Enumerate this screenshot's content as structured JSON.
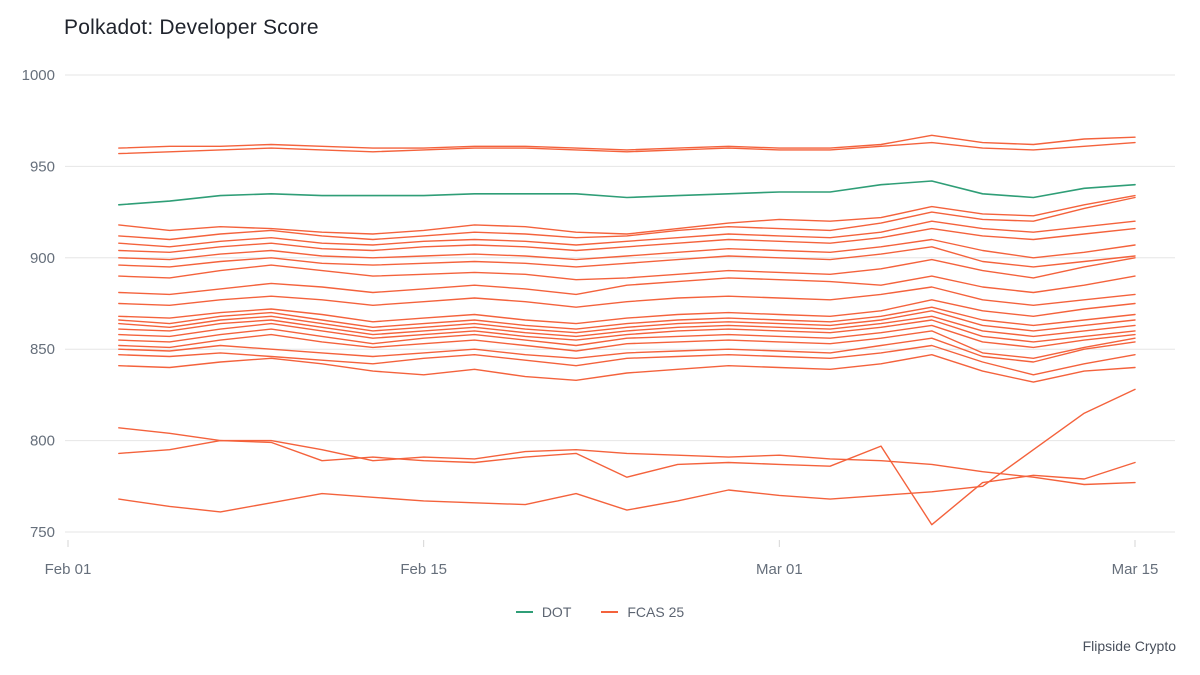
{
  "title": "Polkadot: Developer Score",
  "attribution": "Flipside Crypto",
  "legend": [
    {
      "label": "DOT",
      "color": "#2f9e77"
    },
    {
      "label": "FCAS 25",
      "color": "#f4623c"
    }
  ],
  "colors": {
    "dot_line": "#2f9e77",
    "fcas_line": "#f4623c",
    "gridline": "#e6e6e6",
    "axis_text": "#666f7b",
    "tick_mark": "#d6d6d6"
  },
  "chart_data": {
    "type": "line",
    "title": "Polkadot: Developer Score",
    "xlabel": "",
    "ylabel": "",
    "grid": "horizontal",
    "legend_position": "bottom-center",
    "xlim": [
      0,
      42
    ],
    "ylim": [
      750,
      1000
    ],
    "y_ticks": [
      750,
      800,
      850,
      900,
      950,
      1000
    ],
    "x_ticks": [
      {
        "pos": 0,
        "label": "Feb 01"
      },
      {
        "pos": 14,
        "label": "Feb 15"
      },
      {
        "pos": 28,
        "label": "Mar 01"
      },
      {
        "pos": 42,
        "label": "Mar 15"
      }
    ],
    "x_unit": "days since Feb 01",
    "x": [
      2,
      4,
      6,
      8,
      10,
      12,
      14,
      16,
      18,
      20,
      22,
      24,
      26,
      28,
      30,
      32,
      34,
      36,
      38,
      40,
      42
    ],
    "series": [
      {
        "name": "FCAS 25",
        "color": "#f4623c",
        "values": [
          960,
          961,
          961,
          962,
          961,
          960,
          960,
          961,
          961,
          960,
          959,
          960,
          961,
          960,
          960,
          962,
          967,
          963,
          962,
          965,
          966
        ]
      },
      {
        "name": "FCAS 25",
        "color": "#f4623c",
        "values": [
          957,
          958,
          959,
          960,
          959,
          958,
          959,
          960,
          960,
          959,
          958,
          959,
          960,
          959,
          959,
          961,
          963,
          960,
          959,
          961,
          963
        ]
      },
      {
        "name": "FCAS 25",
        "color": "#f4623c",
        "values": [
          918,
          915,
          917,
          916,
          914,
          913,
          915,
          918,
          917,
          914,
          913,
          916,
          919,
          921,
          920,
          922,
          928,
          924,
          923,
          929,
          934
        ]
      },
      {
        "name": "FCAS 25",
        "color": "#f4623c",
        "values": [
          912,
          910,
          913,
          915,
          912,
          910,
          912,
          914,
          913,
          911,
          912,
          915,
          917,
          916,
          915,
          919,
          925,
          921,
          920,
          927,
          933
        ]
      },
      {
        "name": "FCAS 25",
        "color": "#f4623c",
        "values": [
          908,
          906,
          909,
          911,
          908,
          907,
          909,
          910,
          909,
          907,
          909,
          911,
          913,
          912,
          911,
          914,
          920,
          916,
          914,
          917,
          920
        ]
      },
      {
        "name": "FCAS 25",
        "color": "#f4623c",
        "values": [
          904,
          903,
          906,
          908,
          905,
          904,
          906,
          907,
          906,
          904,
          906,
          908,
          910,
          909,
          908,
          911,
          916,
          912,
          910,
          913,
          916
        ]
      },
      {
        "name": "FCAS 25",
        "color": "#f4623c",
        "values": [
          900,
          899,
          902,
          904,
          901,
          900,
          901,
          902,
          901,
          899,
          901,
          903,
          905,
          904,
          903,
          906,
          910,
          904,
          900,
          903,
          907
        ]
      },
      {
        "name": "FCAS 25",
        "color": "#f4623c",
        "values": [
          896,
          895,
          898,
          900,
          897,
          896,
          897,
          898,
          897,
          895,
          897,
          899,
          901,
          900,
          899,
          902,
          906,
          898,
          895,
          898,
          901
        ]
      },
      {
        "name": "FCAS 25",
        "color": "#f4623c",
        "values": [
          890,
          889,
          893,
          896,
          893,
          890,
          891,
          892,
          891,
          888,
          889,
          891,
          893,
          892,
          891,
          894,
          899,
          893,
          889,
          895,
          900
        ]
      },
      {
        "name": "FCAS 25",
        "color": "#f4623c",
        "values": [
          881,
          880,
          883,
          886,
          884,
          881,
          883,
          885,
          883,
          880,
          885,
          887,
          889,
          888,
          887,
          885,
          890,
          884,
          881,
          885,
          890
        ]
      },
      {
        "name": "FCAS 25",
        "color": "#f4623c",
        "values": [
          875,
          874,
          877,
          879,
          877,
          874,
          876,
          878,
          876,
          873,
          876,
          878,
          879,
          878,
          877,
          880,
          884,
          877,
          874,
          877,
          880
        ]
      },
      {
        "name": "FCAS 25",
        "color": "#f4623c",
        "values": [
          868,
          867,
          870,
          872,
          869,
          865,
          867,
          869,
          866,
          864,
          867,
          869,
          870,
          869,
          868,
          871,
          877,
          871,
          868,
          872,
          875
        ]
      },
      {
        "name": "FCAS 25",
        "color": "#f4623c",
        "values": [
          866,
          864,
          868,
          870,
          866,
          862,
          864,
          866,
          863,
          861,
          864,
          866,
          867,
          866,
          865,
          868,
          873,
          866,
          863,
          866,
          869
        ]
      },
      {
        "name": "FCAS 25",
        "color": "#f4623c",
        "values": [
          864,
          862,
          866,
          868,
          864,
          860,
          862,
          864,
          861,
          859,
          862,
          864,
          865,
          864,
          863,
          866,
          871,
          863,
          860,
          863,
          866
        ]
      },
      {
        "name": "FCAS 25",
        "color": "#f4623c",
        "values": [
          861,
          860,
          864,
          866,
          862,
          858,
          860,
          862,
          859,
          857,
          860,
          862,
          863,
          862,
          861,
          864,
          868,
          860,
          857,
          860,
          863
        ]
      },
      {
        "name": "FCAS 25",
        "color": "#f4623c",
        "values": [
          858,
          857,
          861,
          864,
          860,
          856,
          858,
          860,
          857,
          855,
          858,
          860,
          861,
          860,
          859,
          862,
          866,
          857,
          854,
          857,
          860
        ]
      },
      {
        "name": "FCAS 25",
        "color": "#f4623c",
        "values": [
          855,
          854,
          858,
          861,
          857,
          853,
          856,
          858,
          855,
          852,
          856,
          857,
          858,
          857,
          856,
          859,
          863,
          854,
          851,
          855,
          858
        ]
      },
      {
        "name": "FCAS 25",
        "color": "#f4623c",
        "values": [
          852,
          851,
          855,
          858,
          854,
          851,
          853,
          855,
          852,
          849,
          853,
          854,
          855,
          854,
          853,
          856,
          860,
          848,
          845,
          851,
          856
        ]
      },
      {
        "name": "FCAS 25",
        "color": "#f4623c",
        "values": [
          850,
          849,
          852,
          850,
          848,
          846,
          848,
          850,
          847,
          845,
          848,
          849,
          850,
          849,
          848,
          852,
          856,
          846,
          843,
          850,
          854
        ]
      },
      {
        "name": "FCAS 25",
        "color": "#f4623c",
        "values": [
          847,
          846,
          848,
          846,
          844,
          842,
          845,
          847,
          844,
          841,
          845,
          846,
          847,
          846,
          845,
          848,
          852,
          843,
          836,
          842,
          847
        ]
      },
      {
        "name": "FCAS 25",
        "color": "#f4623c",
        "values": [
          841,
          840,
          843,
          845,
          842,
          838,
          836,
          839,
          835,
          833,
          837,
          839,
          841,
          840,
          839,
          842,
          847,
          838,
          832,
          838,
          840
        ]
      },
      {
        "name": "FCAS 25",
        "color": "#f4623c",
        "values": [
          807,
          804,
          800,
          800,
          795,
          789,
          791,
          790,
          794,
          795,
          793,
          792,
          791,
          792,
          790,
          789,
          787,
          783,
          780,
          776,
          777
        ]
      },
      {
        "name": "FCAS 25",
        "color": "#f4623c",
        "values": [
          793,
          795,
          800,
          799,
          789,
          791,
          789,
          788,
          791,
          793,
          780,
          787,
          788,
          787,
          786,
          797,
          754,
          777,
          781,
          779,
          788
        ]
      },
      {
        "name": "FCAS 25",
        "color": "#f4623c",
        "values": [
          768,
          764,
          761,
          766,
          771,
          769,
          767,
          766,
          765,
          771,
          762,
          767,
          773,
          770,
          768,
          770,
          772,
          775,
          795,
          815,
          828
        ]
      },
      {
        "name": "DOT",
        "color": "#2f9e77",
        "values": [
          929,
          931,
          934,
          935,
          934,
          934,
          934,
          935,
          935,
          935,
          933,
          934,
          935,
          936,
          936,
          940,
          942,
          935,
          933,
          938,
          940
        ]
      }
    ]
  }
}
